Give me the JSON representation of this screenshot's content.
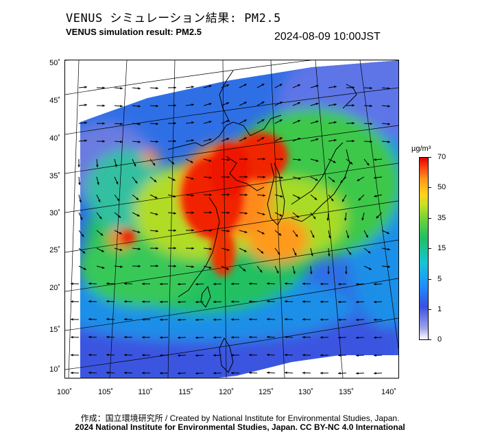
{
  "header": {
    "title_jp": "VENUS シミュレーション結果: PM2.5",
    "title_en": "VENUS simulation result: PM2.5",
    "timestamp": "2024-08-09 10:00JST"
  },
  "map": {
    "lon_range": [
      100,
      140
    ],
    "lat_range": [
      10,
      50
    ],
    "lat_tick_labels": [
      "50˚",
      "45˚",
      "40˚",
      "35˚",
      "30˚",
      "25˚",
      "20˚",
      "15˚",
      "10˚"
    ],
    "lon_tick_labels": [
      "100˚",
      "105˚",
      "110˚",
      "115˚",
      "120˚",
      "125˚",
      "130˚",
      "135˚",
      "140˚"
    ],
    "layers": [
      "pm25-concentration-field",
      "wind-vectors",
      "coastlines",
      "graticule"
    ]
  },
  "colorbar": {
    "unit": "µg/m³",
    "tick_labels": [
      "70",
      "50",
      "35",
      "15",
      "5",
      "1",
      "0"
    ],
    "colors": [
      "#e00000",
      "#ff4a12",
      "#ff9a1a",
      "#ffd21a",
      "#6cd23a",
      "#20c060",
      "#17c4d8",
      "#1e90ff",
      "#3a4fe0",
      "#9fa6e8",
      "#ffffff"
    ]
  },
  "footer": {
    "credit": "作成：国立環境研究所 / Created by National Institute for Environmental Studies, Japan.",
    "copyright": "2024 National Institute for Environmental Studies, Japan. CC BY-NC 4.0 International"
  }
}
